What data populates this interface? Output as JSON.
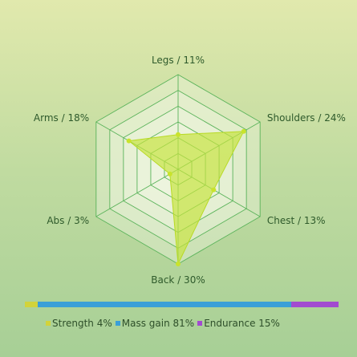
{
  "chart_data": {
    "type": "radar",
    "title": "",
    "axes": [
      {
        "label": "Legs / 11%",
        "value": 11
      },
      {
        "label": "Shoulders / 24%",
        "value": 24
      },
      {
        "label": "Chest / 13%",
        "value": 13
      },
      {
        "label": "Back / 30%",
        "value": 30
      },
      {
        "label": "Abs / 3%",
        "value": 3
      },
      {
        "label": "Arms / 18%",
        "value": 18
      }
    ],
    "rmax": 30,
    "rings": 6,
    "grid": true,
    "colors": {
      "grid_line": "#5ab35a",
      "grid_fill": "#f2f8e6",
      "area_fill": "#c6e33c",
      "area_stroke": "#b8da24",
      "point": "#c9e32c"
    },
    "goal_breakdown": [
      {
        "label": "Strength 4%",
        "value": 4,
        "color": "#d2d33a"
      },
      {
        "label": "Mass gain 81%",
        "value": 81,
        "color": "#3a9fd8"
      },
      {
        "label": "Endurance 15%",
        "value": 15,
        "color": "#a24bd0"
      }
    ],
    "legend_placement": "bottom"
  }
}
